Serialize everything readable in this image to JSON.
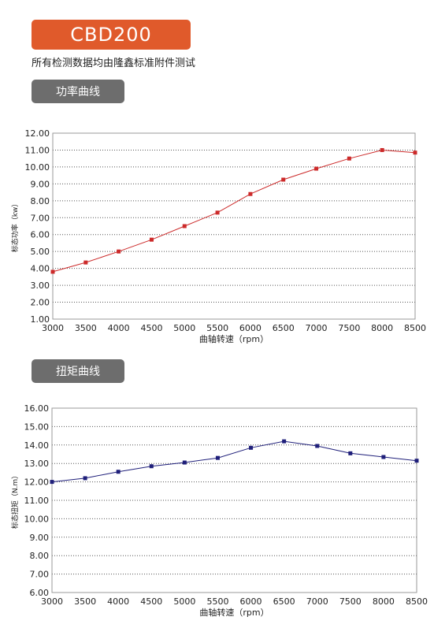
{
  "header": {
    "model": "CBD200",
    "subtitle": "所有检测数据均由隆鑫标准附件测试"
  },
  "sections": [
    {
      "tab_label": "功率曲线"
    },
    {
      "tab_label": "扭矩曲线"
    }
  ],
  "chart_data": [
    {
      "type": "line",
      "title": "",
      "xlabel": "曲轴转速（rpm）",
      "ylabel": "标态功率（kw）",
      "x": [
        3000,
        3500,
        4000,
        4500,
        5000,
        5500,
        6000,
        6500,
        7000,
        7500,
        8000,
        8500
      ],
      "y": [
        3.8,
        4.35,
        5.0,
        5.7,
        6.5,
        7.3,
        8.4,
        9.25,
        9.9,
        10.5,
        11.0,
        10.85
      ],
      "xlim": [
        3000,
        8500
      ],
      "ylim": [
        1.0,
        12.0
      ],
      "yticks": [
        "1.00",
        "2.00",
        "3.00",
        "4.00",
        "5.00",
        "6.00",
        "7.00",
        "8.00",
        "9.00",
        "10.00",
        "11.00",
        "12.00"
      ],
      "xticks": [
        "3000",
        "3500",
        "4000",
        "4500",
        "5000",
        "5500",
        "6000",
        "6500",
        "7000",
        "7500",
        "8000",
        "8500"
      ],
      "color": "#cc2a2a",
      "grid": true
    },
    {
      "type": "line",
      "title": "",
      "xlabel": "曲轴转速（rpm）",
      "ylabel": "标态扭矩（N.m）",
      "x": [
        3000,
        3500,
        4000,
        4500,
        5000,
        5500,
        6000,
        6500,
        7000,
        7500,
        8000,
        8500
      ],
      "y": [
        12.0,
        12.2,
        12.55,
        12.85,
        13.05,
        13.3,
        13.85,
        14.2,
        13.95,
        13.55,
        13.35,
        13.15
      ],
      "xlim": [
        3000,
        8500
      ],
      "ylim": [
        6.0,
        16.0
      ],
      "yticks": [
        "6.00",
        "7.00",
        "8.00",
        "9.00",
        "10.00",
        "11.00",
        "12.00",
        "13.00",
        "14.00",
        "15.00",
        "16.00"
      ],
      "xticks": [
        "3000",
        "3500",
        "4000",
        "4500",
        "5000",
        "5500",
        "6000",
        "6500",
        "7000",
        "7500",
        "8000",
        "8500"
      ],
      "color": "#1f1f7a",
      "grid": true
    }
  ]
}
